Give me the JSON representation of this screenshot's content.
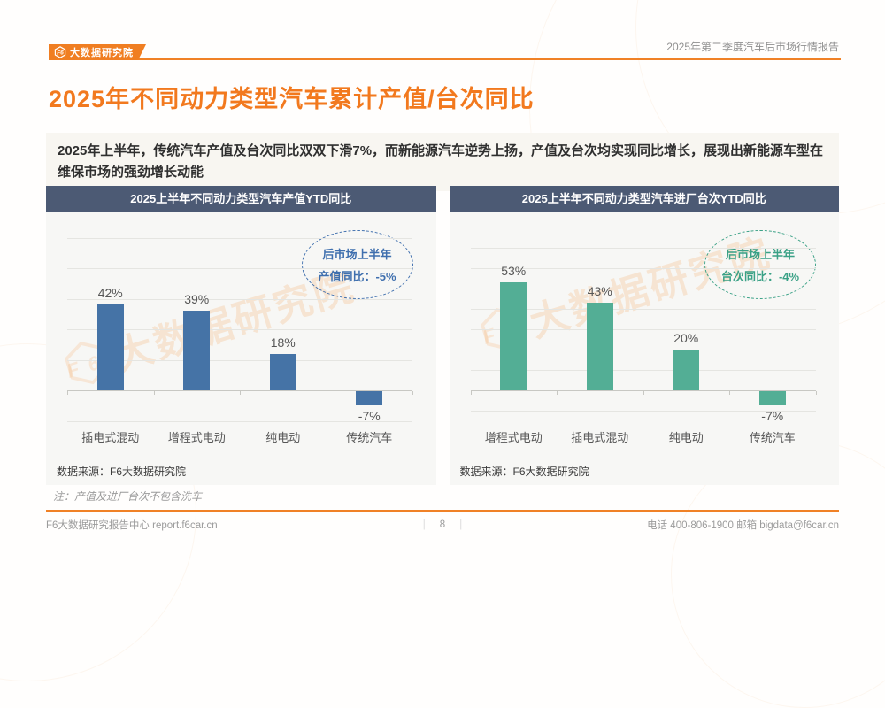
{
  "header": {
    "logo_text": "大数据研究院",
    "report_title": "2025年第二季度汽车后市场行情报告"
  },
  "page": {
    "title": "2025年不同动力类型汽车累计产值/台次同比",
    "summary": "2025年上半年，传统汽车产值及台次同比双双下滑7%，而新能源汽车逆势上扬，产值及台次均实现同比增长，展现出新能源车型在维保市场的强劲增长动能",
    "note": "注：产值及进厂台次不包含洗车"
  },
  "chart_data": [
    {
      "type": "bar",
      "title": "2025上半年不同动力类型汽车产值YTD同比",
      "categories": [
        "插电式混动",
        "增程式电动",
        "纯电动",
        "传统汽车"
      ],
      "values": [
        42,
        39,
        18,
        -7
      ],
      "value_labels": [
        "42%",
        "39%",
        "18%",
        "-7%"
      ],
      "ylim": [
        -15,
        75
      ],
      "grid_step": 15,
      "grid": true,
      "bar_color": "#4573a6",
      "accent_color": "#3f6fae",
      "annotation_line1": "后市场上半年",
      "annotation_line2": "产值同比：-5%",
      "source": "数据来源：F6大数据研究院"
    },
    {
      "type": "bar",
      "title": "2025上半年不同动力类型汽车进厂台次YTD同比",
      "categories": [
        "增程式电动",
        "插电式混动",
        "纯电动",
        "传统汽车"
      ],
      "values": [
        53,
        43,
        20,
        -7
      ],
      "value_labels": [
        "53%",
        "43%",
        "20%",
        "-7%"
      ],
      "ylim": [
        -10,
        70
      ],
      "grid_step": 10,
      "grid": true,
      "bar_color": "#53ae95",
      "accent_color": "#3aa186",
      "annotation_line1": "后市场上半年",
      "annotation_line2": "台次同比：-4%",
      "source": "数据来源：F6大数据研究院"
    }
  ],
  "watermark": {
    "text": "大数据研究院"
  },
  "footer": {
    "left": "F6大数据研究报告中心 report.f6car.cn",
    "page_number": "8",
    "separator": "|",
    "right": "电话 400-806-1900 邮箱 bigdata@f6car.cn"
  },
  "colors": {
    "accent_orange": "#f2791e",
    "banner_orange": "#f07e22",
    "card_header": "#4c5a74",
    "bar_blue": "#4573a6",
    "bar_green": "#53ae95",
    "card_bg": "#f7f7f5",
    "summary_bg": "#f8f6f1"
  }
}
